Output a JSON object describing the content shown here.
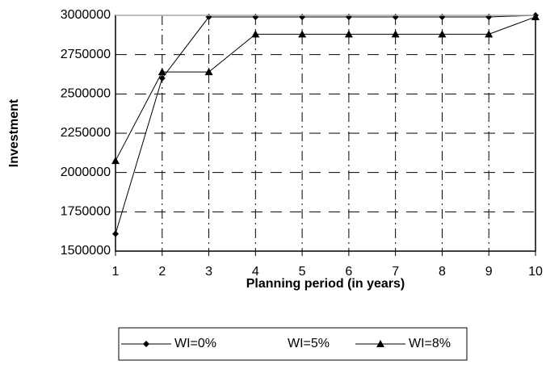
{
  "chart_data": {
    "type": "line",
    "x": [
      1,
      2,
      3,
      4,
      5,
      6,
      7,
      8,
      9,
      10
    ],
    "xlim": [
      1,
      10
    ],
    "xticks": [
      1,
      2,
      3,
      4,
      5,
      6,
      7,
      8,
      9,
      10
    ],
    "ylim": [
      1500000,
      3000000
    ],
    "yticks": [
      1500000,
      1750000,
      2000000,
      2250000,
      2500000,
      2750000,
      3000000
    ],
    "xlabel": "Planning period (in years)",
    "ylabel": "Investment",
    "grid": true,
    "legend": "bottom",
    "series": [
      {
        "name": "WI=0%",
        "color": "#000000",
        "marker": "diamond",
        "values": [
          1610000,
          2600000,
          2990000,
          2990000,
          2990000,
          2990000,
          2990000,
          2990000,
          2990000,
          3000000
        ]
      },
      {
        "name": "WI=5%",
        "color": "#ffffff",
        "marker": "none",
        "values": [
          3000000,
          3000000,
          3000000,
          3000000,
          3000000,
          3000000,
          3000000,
          3000000,
          3000000,
          3000000
        ]
      },
      {
        "name": "WI=8%",
        "color": "#000000",
        "marker": "triangle",
        "values": [
          2075000,
          2640000,
          2640000,
          2880000,
          2880000,
          2880000,
          2880000,
          2880000,
          2880000,
          2990000
        ]
      }
    ]
  }
}
